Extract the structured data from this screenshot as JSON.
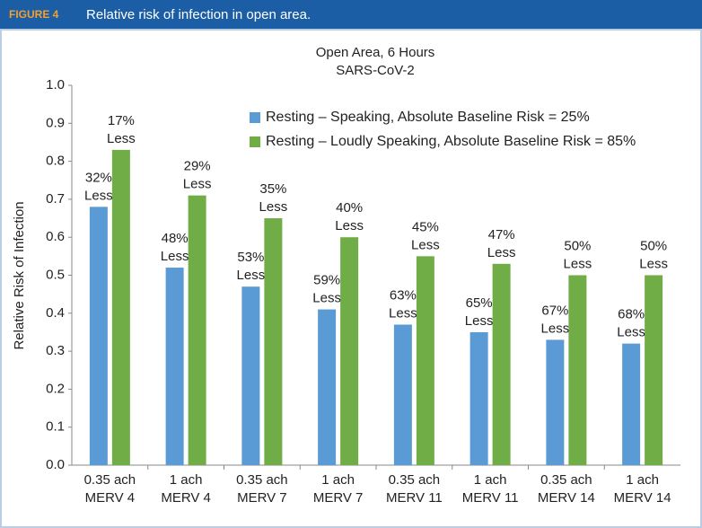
{
  "figure_label": "FIGURE 4",
  "figure_caption": "Relative risk of infection in open area.",
  "chart_data": {
    "type": "bar",
    "title": "Open Area, 6 Hours",
    "subtitle": "SARS-CoV-2",
    "y_label": "Relative Risk of Infection",
    "categories": [
      [
        "0.35 ach",
        "MERV 4"
      ],
      [
        "1 ach",
        "MERV 4"
      ],
      [
        "0.35 ach",
        "MERV 7"
      ],
      [
        "1 ach",
        "MERV 7"
      ],
      [
        "0.35 ach",
        "MERV 11"
      ],
      [
        "1 ach",
        "MERV 11"
      ],
      [
        "0.35 ach",
        "MERV 14"
      ],
      [
        "1 ach",
        "MERV 14"
      ]
    ],
    "series": [
      {
        "name": "Resting – Speaking, Absolute Baseline Risk = 25%",
        "color": "#5b9bd5",
        "values": [
          0.68,
          0.52,
          0.47,
          0.41,
          0.37,
          0.35,
          0.33,
          0.32
        ],
        "annotations": [
          [
            "32%",
            "Less"
          ],
          [
            "48%",
            "Less"
          ],
          [
            "53%",
            "Less"
          ],
          [
            "59%",
            "Less"
          ],
          [
            "63%",
            "Less"
          ],
          [
            "65%",
            "Less"
          ],
          [
            "67%",
            "Less"
          ],
          [
            "68%",
            "Less"
          ]
        ]
      },
      {
        "name": "Resting – Loudly Speaking, Absolute Baseline Risk = 85%",
        "color": "#70ad47",
        "values": [
          0.83,
          0.71,
          0.65,
          0.6,
          0.55,
          0.53,
          0.5,
          0.5
        ],
        "annotations": [
          [
            "17%",
            "Less"
          ],
          [
            "29%",
            "Less"
          ],
          [
            "35%",
            "Less"
          ],
          [
            "40%",
            "Less"
          ],
          [
            "45%",
            "Less"
          ],
          [
            "47%",
            "Less"
          ],
          [
            "50%",
            "Less"
          ],
          [
            "50%",
            "Less"
          ]
        ]
      }
    ],
    "ylim": [
      0,
      1
    ],
    "yticks": [
      {
        "value": 0,
        "label": "0.0"
      },
      0.1,
      0.2,
      0.3,
      0.4,
      0.5,
      0.6,
      0.7,
      0.8,
      0.9,
      {
        "value": 1,
        "label": "1.0"
      }
    ],
    "legend": "top"
  }
}
